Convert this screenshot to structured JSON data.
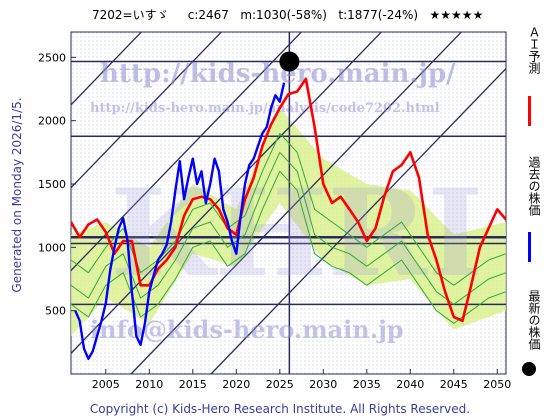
{
  "header": {
    "ticker": "7202=いすゞ",
    "current": "c:2467",
    "min": "m:1030(-58%)",
    "target": "t:1877(-24%)",
    "stars": "★★★★★"
  },
  "side_text": "Generated on Monday 2026/1/5.",
  "watermarks": {
    "url": "http://kids-hero.main.jp/",
    "analysis_url": "http://kids-hero.main.jp/analysis/code7202.html",
    "email": "info@kids-hero.main.jp",
    "logo": "KHRI"
  },
  "legend": [
    {
      "label": "ＡＩ予測",
      "color": "#ff0000"
    },
    {
      "label": "過去の株価",
      "color": "#0000ff"
    },
    {
      "label": "最新の株価",
      "color": "#000000"
    }
  ],
  "footer": "Copyright (c) Kids-Hero Research Institute. All Rights Reserved.",
  "colors": {
    "actual": "#0000ff",
    "forecast": "#ff0000",
    "band": "#33aa33",
    "band_fill": "#d8f08a",
    "lines": "#2a2a5e"
  },
  "chart_data": {
    "type": "line",
    "xlim": [
      2001,
      2051
    ],
    "ylim": [
      0,
      2700
    ],
    "xticks": [
      2005,
      2010,
      2015,
      2020,
      2025,
      2030,
      2035,
      2040,
      2045,
      2050
    ],
    "yticks": [
      500,
      1000,
      1500,
      2000,
      2500
    ],
    "current_point": {
      "x": 2026.1,
      "y": 2467
    },
    "current_marker_x": 2026.1,
    "horizontal_levels": [
      2467,
      1877,
      1030,
      550,
      1080
    ],
    "series": [
      {
        "name": "過去の株価",
        "color": "#0000ff",
        "x": [
          2001.5,
          2002,
          2002.5,
          2003,
          2003.5,
          2004,
          2004.5,
          2005,
          2005.5,
          2006,
          2006.5,
          2007,
          2007.5,
          2008,
          2008.5,
          2009,
          2009.5,
          2010,
          2010.5,
          2011,
          2011.5,
          2012,
          2012.5,
          2013,
          2013.5,
          2014,
          2014.5,
          2015,
          2015.5,
          2016,
          2016.5,
          2017,
          2017.5,
          2018,
          2018.5,
          2019,
          2019.5,
          2020,
          2020.5,
          2021,
          2021.5,
          2022,
          2022.5,
          2023,
          2023.5,
          2024,
          2024.5,
          2025,
          2025.5
        ],
        "y": [
          500,
          420,
          200,
          120,
          180,
          300,
          420,
          560,
          820,
          1000,
          1150,
          1230,
          1050,
          650,
          300,
          230,
          400,
          650,
          780,
          900,
          950,
          1020,
          1200,
          1450,
          1680,
          1380,
          1550,
          1700,
          1500,
          1600,
          1350,
          1500,
          1700,
          1600,
          1300,
          1200,
          1050,
          950,
          1250,
          1500,
          1650,
          1700,
          1800,
          1900,
          1950,
          2100,
          2200,
          2150,
          2300
        ]
      },
      {
        "name": "ＡＩ予測",
        "color": "#ff0000",
        "x": [
          2001,
          2002,
          2003,
          2004,
          2005,
          2006,
          2007,
          2008,
          2009,
          2010,
          2011,
          2012,
          2013,
          2014,
          2015,
          2016,
          2017,
          2018,
          2019,
          2020,
          2021,
          2022,
          2023,
          2024,
          2025,
          2026,
          2027,
          2028,
          2029,
          2030,
          2031,
          2032,
          2033,
          2034,
          2035,
          2036,
          2037,
          2038,
          2039,
          2040,
          2041,
          2042,
          2043,
          2044,
          2045,
          2046,
          2047,
          2048,
          2049,
          2050,
          2051
        ],
        "y": [
          1200,
          1080,
          1180,
          1220,
          1120,
          950,
          1050,
          1050,
          700,
          700,
          830,
          900,
          1000,
          1250,
          1380,
          1400,
          1380,
          1300,
          1150,
          1100,
          1380,
          1550,
          1800,
          1970,
          2100,
          2210,
          2230,
          2330,
          1950,
          1500,
          1350,
          1400,
          1300,
          1200,
          1050,
          1150,
          1400,
          1600,
          1650,
          1750,
          1550,
          1100,
          900,
          650,
          450,
          420,
          700,
          1000,
          1150,
          1300,
          1220
        ]
      },
      {
        "name": "",
        "color": "#33aa33",
        "x": [
          2001,
          2003,
          2005,
          2007,
          2009,
          2011,
          2013,
          2015,
          2017,
          2019,
          2021,
          2023,
          2025,
          2027,
          2029,
          2031,
          2033,
          2035,
          2037,
          2039,
          2041,
          2043,
          2045,
          2047,
          2049,
          2051
        ],
        "y": [
          900,
          800,
          1000,
          1150,
          800,
          900,
          1050,
          1300,
          1350,
          1150,
          1250,
          1600,
          1900,
          1750,
          1300,
          1200,
          1100,
          1000,
          1100,
          1200,
          1000,
          800,
          700,
          800,
          900,
          950
        ]
      },
      {
        "name": "",
        "color": "#33aa33",
        "x": [
          2001,
          2003,
          2005,
          2007,
          2009,
          2011,
          2013,
          2015,
          2017,
          2019,
          2021,
          2023,
          2025,
          2027,
          2029,
          2031,
          2033,
          2035,
          2037,
          2039,
          2041,
          2043,
          2045,
          2047,
          2049,
          2051
        ],
        "y": [
          700,
          600,
          850,
          950,
          600,
          700,
          900,
          1150,
          1200,
          1000,
          1100,
          1450,
          1750,
          1600,
          1100,
          1000,
          950,
          850,
          950,
          1050,
          850,
          650,
          550,
          650,
          750,
          800
        ]
      },
      {
        "name": "",
        "color": "#33aa33",
        "x": [
          2001,
          2003,
          2005,
          2007,
          2009,
          2011,
          2013,
          2015,
          2017,
          2019,
          2021,
          2023,
          2025,
          2027,
          2029,
          2031,
          2033,
          2035,
          2037,
          2039,
          2041,
          2043,
          2045,
          2047,
          2049,
          2051
        ],
        "y": [
          550,
          450,
          700,
          800,
          450,
          550,
          750,
          1000,
          1050,
          850,
          950,
          1300,
          1600,
          1450,
          950,
          850,
          800,
          700,
          800,
          900,
          700,
          500,
          400,
          500,
          600,
          650
        ]
      }
    ],
    "band": {
      "x": [
        2001,
        2005,
        2010,
        2015,
        2020,
        2025,
        2030,
        2035,
        2040,
        2045,
        2051
      ],
      "upper": [
        1100,
        1200,
        1000,
        1500,
        1300,
        2100,
        1700,
        1500,
        1450,
        1100,
        1200
      ],
      "lower": [
        300,
        600,
        400,
        950,
        850,
        1350,
        900,
        700,
        750,
        350,
        500
      ]
    }
  }
}
